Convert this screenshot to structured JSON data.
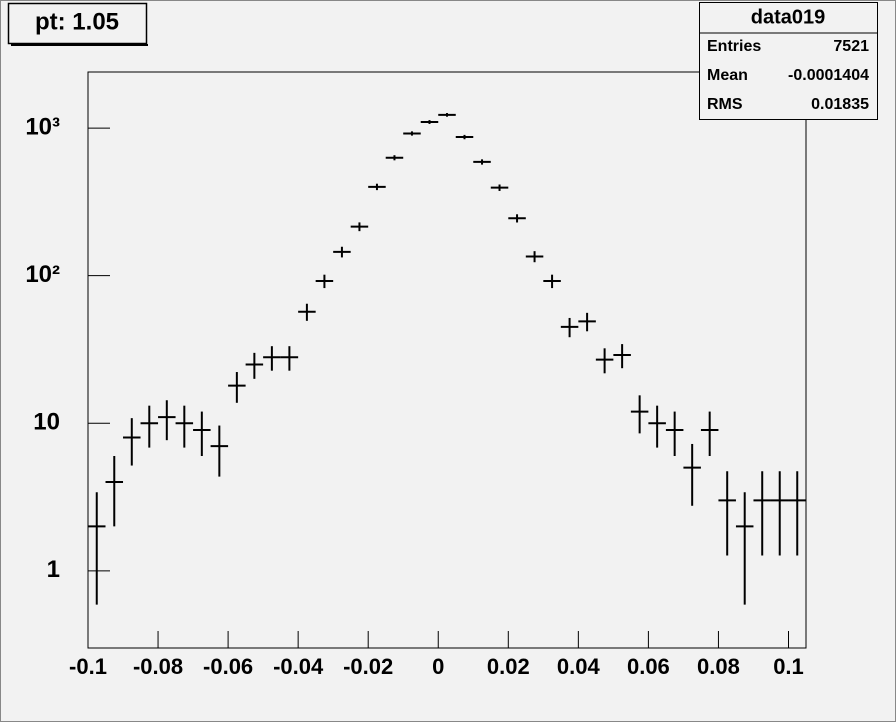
{
  "chart_data": {
    "type": "errorbar",
    "title": "pt: 1.05",
    "stats": {
      "title": "data019",
      "rows": [
        [
          "Entries",
          "7521"
        ],
        [
          "Mean",
          "-0.0001404"
        ],
        [
          "RMS",
          "0.01835"
        ]
      ]
    },
    "x": [
      -0.0975,
      -0.0925,
      -0.0875,
      -0.0825,
      -0.0775,
      -0.0725,
      -0.0675,
      -0.0625,
      -0.0575,
      -0.0525,
      -0.0475,
      -0.0425,
      -0.0375,
      -0.0325,
      -0.0275,
      -0.0225,
      -0.0175,
      -0.0125,
      -0.0075,
      -0.0025,
      0.0025,
      0.0075,
      0.0125,
      0.0175,
      0.0225,
      0.0275,
      0.0325,
      0.0375,
      0.0425,
      0.0475,
      0.0525,
      0.0575,
      0.0625,
      0.0675,
      0.0725,
      0.0775,
      0.0825,
      0.0875,
      0.0925,
      0.0975,
      0.1025
    ],
    "values": [
      2,
      4,
      8,
      10,
      11,
      10,
      9,
      7,
      18,
      25,
      28,
      28,
      57,
      92,
      145,
      215,
      400,
      630,
      920,
      1100,
      1230,
      870,
      590,
      395,
      245,
      135,
      92,
      45,
      49,
      27,
      29,
      12,
      10,
      9,
      5,
      9,
      3,
      2,
      3,
      3,
      3
    ],
    "errors": [
      1.41,
      2,
      2.83,
      3.16,
      3.32,
      3.16,
      3,
      2.65,
      4.24,
      5,
      5.29,
      5.29,
      7.55,
      9.59,
      12.04,
      14.66,
      20,
      25.1,
      30.33,
      33.17,
      35.07,
      29.5,
      24.29,
      19.87,
      15.65,
      11.62,
      9.59,
      6.71,
      7,
      5.2,
      5.39,
      3.46,
      3.16,
      3,
      2.24,
      3,
      1.73,
      1.41,
      1.73,
      1.73,
      1.73
    ],
    "color": "#000000",
    "xlim": [
      -0.1,
      0.105
    ],
    "xticks": [
      -0.1,
      -0.08,
      -0.06,
      -0.04,
      -0.02,
      0,
      0.02,
      0.04,
      0.06,
      0.08,
      0.1
    ],
    "ylim": [
      0.3,
      2400
    ],
    "ylog": true,
    "yticks": [
      1,
      10,
      {
        "value": 100,
        "label": "10²"
      },
      {
        "value": 1000,
        "label": "10³"
      }
    ]
  }
}
